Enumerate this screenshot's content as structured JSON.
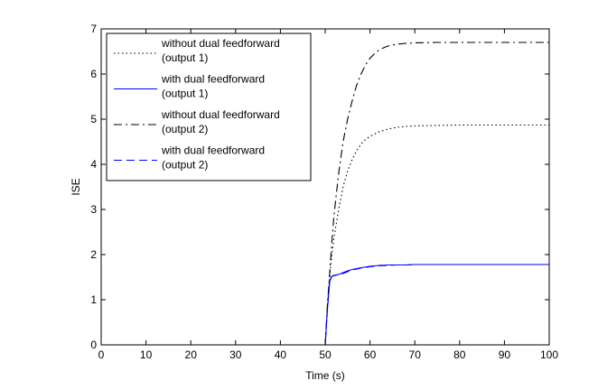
{
  "chart_data": {
    "type": "line",
    "xlabel": "Time (s)",
    "ylabel": "ISE",
    "xlim": [
      0,
      100
    ],
    "ylim": [
      0,
      7
    ],
    "xticks": [
      0,
      10,
      20,
      30,
      40,
      50,
      60,
      70,
      80,
      90,
      100
    ],
    "yticks": [
      0,
      1,
      2,
      3,
      4,
      5,
      6,
      7
    ],
    "grid": false,
    "legend_position": "top-left",
    "series": [
      {
        "name": [
          "without dual feedforward",
          "(output 1)"
        ],
        "color": "#000000",
        "style": "dotted",
        "x": [
          0,
          50,
          50.5,
          51,
          51.5,
          52,
          53,
          54,
          55,
          56,
          57,
          58,
          59,
          60,
          62,
          64,
          66,
          68,
          70,
          75,
          80,
          85,
          90,
          95,
          100
        ],
        "y": [
          0,
          0,
          0.9,
          1.5,
          2.0,
          2.4,
          3.0,
          3.5,
          3.85,
          4.1,
          4.3,
          4.45,
          4.55,
          4.62,
          4.72,
          4.78,
          4.82,
          4.84,
          4.85,
          4.86,
          4.87,
          4.87,
          4.87,
          4.87,
          4.87
        ]
      },
      {
        "name": [
          "with dual feedforward",
          "(output 1)"
        ],
        "color": "#0000ff",
        "style": "solid",
        "x": [
          0,
          50,
          50.5,
          51,
          51.5,
          52,
          53,
          54,
          55,
          56,
          58,
          60,
          62,
          64,
          66,
          68,
          70,
          75,
          80,
          85,
          90,
          95,
          100
        ],
        "y": [
          0,
          0,
          0.8,
          1.4,
          1.52,
          1.53,
          1.56,
          1.6,
          1.64,
          1.67,
          1.71,
          1.74,
          1.76,
          1.77,
          1.77,
          1.77,
          1.78,
          1.78,
          1.78,
          1.78,
          1.78,
          1.78,
          1.78
        ]
      },
      {
        "name": [
          "without dual feedforward",
          "(output 2)"
        ],
        "color": "#000000",
        "style": "dashdot",
        "x": [
          0,
          50,
          50.5,
          51,
          51.5,
          52,
          53,
          54,
          55,
          56,
          57,
          58,
          59,
          60,
          61,
          62,
          63,
          64,
          66,
          68,
          70,
          75,
          80,
          85,
          90,
          95,
          100
        ],
        "y": [
          0,
          0,
          0.9,
          1.6,
          2.3,
          2.9,
          3.8,
          4.5,
          5.0,
          5.4,
          5.75,
          6.0,
          6.2,
          6.35,
          6.45,
          6.53,
          6.58,
          6.62,
          6.66,
          6.68,
          6.69,
          6.7,
          6.7,
          6.7,
          6.7,
          6.7,
          6.7
        ]
      },
      {
        "name": [
          "with dual feedforward",
          "(output 2)"
        ],
        "color": "#0000ff",
        "style": "dashed",
        "x": [
          0,
          50,
          50.5,
          51,
          51.5,
          52,
          53,
          54,
          55,
          56,
          58,
          60,
          62,
          64,
          66,
          68,
          70,
          75,
          80,
          85,
          90,
          95,
          100
        ],
        "y": [
          0,
          0,
          0.8,
          1.45,
          1.52,
          1.54,
          1.56,
          1.58,
          1.62,
          1.66,
          1.7,
          1.73,
          1.75,
          1.76,
          1.77,
          1.77,
          1.78,
          1.78,
          1.78,
          1.78,
          1.78,
          1.78,
          1.78
        ]
      }
    ]
  }
}
